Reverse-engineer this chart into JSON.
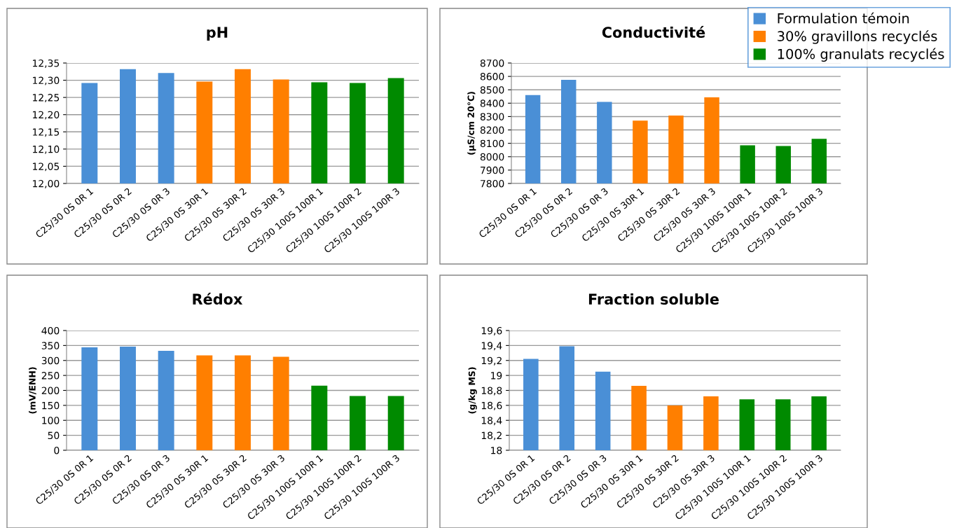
{
  "chart_data": [
    {
      "type": "bar",
      "title": "pH",
      "stacked": true,
      "grid": "y",
      "categories": [
        "C25/30 0S 0R 1",
        "C25/30 0S 0R 2",
        "C25/30 0S 0R 3",
        "C25/30 0S 30R 1",
        "C25/30 0S 30R 2",
        "C25/30 0S 30R 3",
        "C25/30 100S 100R 1",
        "C25/30 100S 100R 2",
        "C25/30 100S 100R 3"
      ],
      "series": [
        {
          "color": "#4a8fd6",
          "values": [
            12.292,
            12.332,
            12.321,
            null,
            null,
            null,
            null,
            null,
            null
          ]
        },
        {
          "color": "#ff7f00",
          "values": [
            null,
            null,
            null,
            12.296,
            12.332,
            12.302,
            null,
            null,
            null
          ]
        },
        {
          "color": "#008a00",
          "values": [
            null,
            null,
            null,
            null,
            null,
            null,
            12.294,
            12.292,
            12.306
          ]
        }
      ],
      "ylim": [
        12.0,
        12.35
      ],
      "yticks": [
        {
          "value": 12.0,
          "label": "12,00"
        },
        {
          "value": 12.05,
          "label": "12,05"
        },
        {
          "value": 12.1,
          "label": "12,10"
        },
        {
          "value": 12.15,
          "label": "12,15"
        },
        {
          "value": 12.2,
          "label": "12,20"
        },
        {
          "value": 12.25,
          "label": "12,25"
        },
        {
          "value": 12.3,
          "label": "12,30"
        },
        {
          "value": 12.35,
          "label": "12,35"
        }
      ]
    },
    {
      "type": "bar",
      "title": "Conductivité",
      "ylabel": "(µS/cm 20°C)",
      "stacked": true,
      "grid": "y",
      "legend": "top right",
      "categories": [
        "C25/30 0S 0R 1",
        "C25/30 0S 0R 2",
        "C25/30 0S 0R 3",
        "C25/30 0S 30R 1",
        "C25/30 0S 30R 2",
        "C25/30 0S 30R 3",
        "C25/30 100S 100R 1",
        "C25/30 100S 100R 2",
        "C25/30 100S 100R 3"
      ],
      "series": [
        {
          "name": "Formulation témoin",
          "color": "#4a8fd6",
          "values": [
            8460,
            8575,
            8410,
            null,
            null,
            null,
            null,
            null,
            null
          ]
        },
        {
          "name": "30% gravillons recyclés",
          "color": "#ff7f00",
          "values": [
            null,
            null,
            null,
            8270,
            8308,
            8443,
            null,
            null,
            null
          ]
        },
        {
          "name": "100% granulats recyclés",
          "color": "#008a00",
          "values": [
            null,
            null,
            null,
            null,
            null,
            null,
            8085,
            8080,
            8133
          ]
        }
      ],
      "ylim": [
        7800,
        8700
      ],
      "yticks": [
        7800,
        7900,
        8000,
        8100,
        8200,
        8300,
        8400,
        8500,
        8600,
        8700
      ]
    },
    {
      "type": "bar",
      "title": "Rédox",
      "ylabel": "(mV/ENH)",
      "stacked": true,
      "grid": "y",
      "categories": [
        "C25/30 0S 0R 1",
        "C25/30 0S 0R 2",
        "C25/30 0S 0R 3",
        "C25/30 0S 30R 1",
        "C25/30 0S 30R 2",
        "C25/30 0S 30R 3",
        "C25/30 100S 100R 1",
        "C25/30 100S 100R 2",
        "C25/30 100S 100R 3"
      ],
      "series": [
        {
          "color": "#4a8fd6",
          "values": [
            344,
            346,
            332,
            null,
            null,
            null,
            null,
            null,
            null
          ]
        },
        {
          "color": "#ff7f00",
          "values": [
            null,
            null,
            null,
            317,
            317,
            312,
            null,
            null,
            null
          ]
        },
        {
          "color": "#008a00",
          "values": [
            null,
            null,
            null,
            null,
            null,
            null,
            216,
            181,
            181
          ]
        }
      ],
      "ylim": [
        0,
        400
      ],
      "yticks": [
        0,
        50,
        100,
        150,
        200,
        250,
        300,
        350,
        400
      ]
    },
    {
      "type": "bar",
      "title": "Fraction soluble",
      "ylabel": "(g/kg MS)",
      "stacked": true,
      "grid": "y",
      "categories": [
        "C25/30 0S 0R 1",
        "C25/30 0S 0R 2",
        "C25/30 0S 0R 3",
        "C25/30 0S 30R 1",
        "C25/30 0S 30R 2",
        "C25/30 0S 30R 3",
        "C25/30 100S 100R 1",
        "C25/30 100S 100R 2",
        "C25/30 100S 100R 3"
      ],
      "series": [
        {
          "color": "#4a8fd6",
          "values": [
            19.22,
            19.39,
            19.05,
            null,
            null,
            null,
            null,
            null,
            null
          ]
        },
        {
          "color": "#ff7f00",
          "values": [
            null,
            null,
            null,
            18.86,
            18.6,
            18.72,
            null,
            null,
            null
          ]
        },
        {
          "color": "#008a00",
          "values": [
            null,
            null,
            null,
            null,
            null,
            null,
            18.68,
            18.68,
            18.72
          ]
        }
      ],
      "ylim": [
        18,
        19.6
      ],
      "yticks": [
        18,
        {
          "value": 18.2,
          "label": "18,2"
        },
        {
          "value": 18.4,
          "label": "18,4"
        },
        {
          "value": 18.6,
          "label": "18,6"
        },
        {
          "value": 18.8,
          "label": "18,8"
        },
        19,
        {
          "value": 19.2,
          "label": "19,2"
        },
        {
          "value": 19.4,
          "label": "19,4"
        },
        {
          "value": 19.6,
          "label": "19,6"
        }
      ]
    }
  ]
}
